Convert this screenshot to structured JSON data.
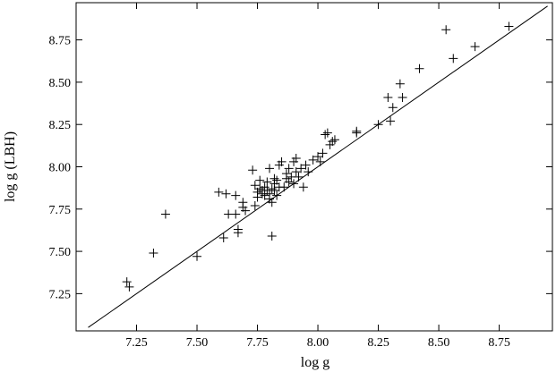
{
  "chart_data": {
    "type": "scatter",
    "xlabel": "log g",
    "ylabel": "log g (LBH)",
    "xlim": [
      7.0,
      8.97
    ],
    "ylim": [
      7.03,
      8.97
    ],
    "x_ticks": [
      7.25,
      7.5,
      7.75,
      8.0,
      8.25,
      8.5,
      8.75
    ],
    "x_tick_labels": [
      "7.25",
      "7.50",
      "7.75",
      "8.00",
      "8.25",
      "8.50",
      "8.75"
    ],
    "y_ticks": [
      7.25,
      7.5,
      7.75,
      8.0,
      8.25,
      8.5,
      8.75
    ],
    "y_tick_labels": [
      "7.25",
      "7.50",
      "7.75",
      "8.00",
      "8.25",
      "8.50",
      "8.75"
    ],
    "grid": false,
    "marker": "plus",
    "color": "#000000",
    "reference_line": {
      "x": [
        7.05,
        8.95
      ],
      "y": [
        7.05,
        8.95
      ]
    },
    "points": [
      [
        7.21,
        7.32
      ],
      [
        7.22,
        7.29
      ],
      [
        7.32,
        7.49
      ],
      [
        7.37,
        7.72
      ],
      [
        7.5,
        7.47
      ],
      [
        7.59,
        7.85
      ],
      [
        7.61,
        7.58
      ],
      [
        7.62,
        7.84
      ],
      [
        7.63,
        7.72
      ],
      [
        7.66,
        7.83
      ],
      [
        7.66,
        7.72
      ],
      [
        7.67,
        7.61
      ],
      [
        7.67,
        7.63
      ],
      [
        7.69,
        7.79
      ],
      [
        7.69,
        7.76
      ],
      [
        7.7,
        7.74
      ],
      [
        7.73,
        7.98
      ],
      [
        7.74,
        7.77
      ],
      [
        7.74,
        7.89
      ],
      [
        7.75,
        7.85
      ],
      [
        7.75,
        7.82
      ],
      [
        7.76,
        7.92
      ],
      [
        7.76,
        7.87
      ],
      [
        7.77,
        7.84
      ],
      [
        7.77,
        7.86
      ],
      [
        7.78,
        7.83
      ],
      [
        7.78,
        7.88
      ],
      [
        7.79,
        7.86
      ],
      [
        7.79,
        7.91
      ],
      [
        7.8,
        7.99
      ],
      [
        7.8,
        7.84
      ],
      [
        7.8,
        7.81
      ],
      [
        7.81,
        7.87
      ],
      [
        7.81,
        7.59
      ],
      [
        7.81,
        7.79
      ],
      [
        7.82,
        7.93
      ],
      [
        7.82,
        7.9
      ],
      [
        7.82,
        7.86
      ],
      [
        7.83,
        7.83
      ],
      [
        7.83,
        7.92
      ],
      [
        7.84,
        7.88
      ],
      [
        7.84,
        8.01
      ],
      [
        7.85,
        8.03
      ],
      [
        7.86,
        7.88
      ],
      [
        7.87,
        7.93
      ],
      [
        7.87,
        7.96
      ],
      [
        7.88,
        7.91
      ],
      [
        7.88,
        7.99
      ],
      [
        7.89,
        7.94
      ],
      [
        7.9,
        7.9
      ],
      [
        7.9,
        8.03
      ],
      [
        7.91,
        8.05
      ],
      [
        7.91,
        7.97
      ],
      [
        7.92,
        7.94
      ],
      [
        7.93,
        7.99
      ],
      [
        7.94,
        7.88
      ],
      [
        7.95,
        8.01
      ],
      [
        7.96,
        7.97
      ],
      [
        7.98,
        8.04
      ],
      [
        8.0,
        8.06
      ],
      [
        8.01,
        8.03
      ],
      [
        8.02,
        8.08
      ],
      [
        8.03,
        8.19
      ],
      [
        8.04,
        8.2
      ],
      [
        8.05,
        8.13
      ],
      [
        8.06,
        8.15
      ],
      [
        8.07,
        8.16
      ],
      [
        8.16,
        8.2
      ],
      [
        8.16,
        8.21
      ],
      [
        8.25,
        8.25
      ],
      [
        8.29,
        8.41
      ],
      [
        8.3,
        8.27
      ],
      [
        8.31,
        8.35
      ],
      [
        8.34,
        8.49
      ],
      [
        8.35,
        8.41
      ],
      [
        8.42,
        8.58
      ],
      [
        8.53,
        8.81
      ],
      [
        8.56,
        8.64
      ],
      [
        8.65,
        8.71
      ],
      [
        8.79,
        8.83
      ]
    ]
  }
}
